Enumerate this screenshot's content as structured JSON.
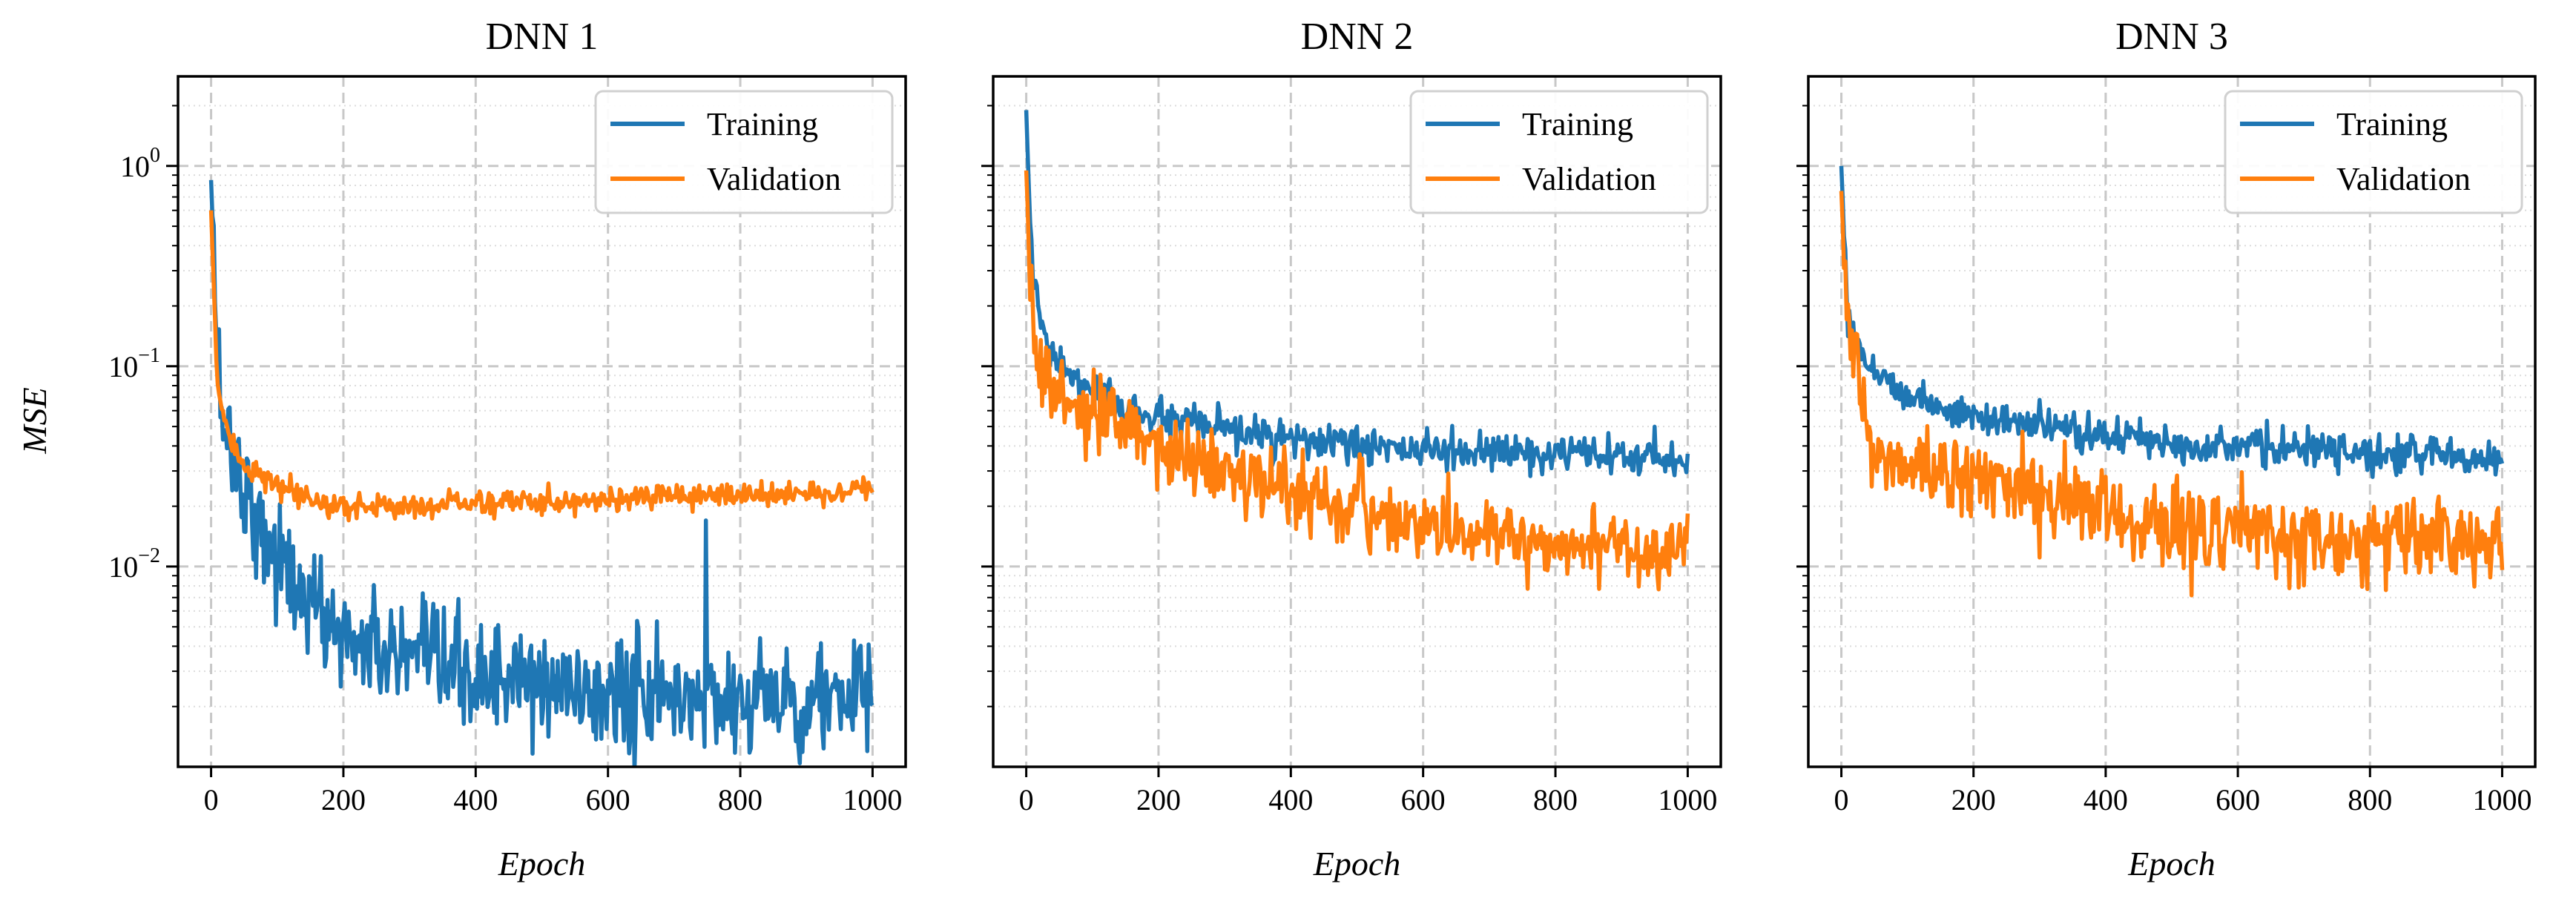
{
  "figure": {
    "shared_ylabel": "MSE",
    "shared_xlabel": "Epoch"
  },
  "chart_data": [
    {
      "type": "line",
      "title": "DNN 1",
      "xlabel": "Epoch",
      "ylabel": "MSE",
      "yscale": "log",
      "xlim": [
        -50,
        1050
      ],
      "ylim": [
        0.001,
        2.8
      ],
      "xticks": [
        0,
        200,
        400,
        600,
        800,
        1000
      ],
      "yticks": [
        {
          "value": 1,
          "base": "10",
          "exp": "0"
        },
        {
          "value": 0.1,
          "base": "10",
          "exp": "−1"
        },
        {
          "value": 0.01,
          "base": "10",
          "exp": "−2"
        }
      ],
      "grid": true,
      "legend_position": "top-right",
      "series": [
        {
          "name": "Training",
          "color": "#1f77b4",
          "x": [
            0,
            5,
            10,
            20,
            30,
            50,
            75,
            100,
            150,
            200,
            300,
            400,
            500,
            600,
            700,
            800,
            900,
            1000
          ],
          "values": [
            0.85,
            0.3,
            0.1,
            0.055,
            0.04,
            0.025,
            0.016,
            0.011,
            0.0065,
            0.0045,
            0.0033,
            0.0028,
            0.0025,
            0.0023,
            0.0022,
            0.0022,
            0.0022,
            0.0022
          ]
        },
        {
          "name": "Validation",
          "color": "#ff7f0e",
          "x": [
            0,
            5,
            10,
            20,
            30,
            50,
            75,
            100,
            150,
            200,
            300,
            400,
            500,
            600,
            700,
            800,
            900,
            1000
          ],
          "values": [
            0.6,
            0.2,
            0.08,
            0.05,
            0.042,
            0.033,
            0.028,
            0.025,
            0.021,
            0.02,
            0.02,
            0.021,
            0.021,
            0.022,
            0.022,
            0.023,
            0.023,
            0.024
          ]
        }
      ]
    },
    {
      "type": "line",
      "title": "DNN 2",
      "xlabel": "Epoch",
      "ylabel": "",
      "yscale": "log",
      "xlim": [
        -50,
        1050
      ],
      "ylim": [
        0.001,
        2.8
      ],
      "xticks": [
        0,
        200,
        400,
        600,
        800,
        1000
      ],
      "yticks": [
        {
          "value": 1
        },
        {
          "value": 0.1
        },
        {
          "value": 0.01
        }
      ],
      "grid": true,
      "legend_position": "top-right",
      "series": [
        {
          "name": "Training",
          "color": "#1f77b4",
          "x": [
            0,
            5,
            10,
            20,
            30,
            50,
            75,
            100,
            150,
            200,
            300,
            400,
            500,
            600,
            700,
            800,
            900,
            1000
          ],
          "values": [
            1.9,
            0.6,
            0.3,
            0.17,
            0.13,
            0.1,
            0.085,
            0.075,
            0.062,
            0.055,
            0.048,
            0.043,
            0.04,
            0.038,
            0.037,
            0.036,
            0.035,
            0.034
          ]
        },
        {
          "name": "Validation",
          "color": "#ff7f0e",
          "x": [
            0,
            5,
            10,
            20,
            30,
            50,
            75,
            100,
            150,
            200,
            300,
            400,
            500,
            600,
            700,
            800,
            900,
            1000
          ],
          "values": [
            0.95,
            0.35,
            0.16,
            0.1,
            0.085,
            0.07,
            0.062,
            0.056,
            0.047,
            0.04,
            0.03,
            0.024,
            0.019,
            0.016,
            0.014,
            0.013,
            0.013,
            0.012
          ]
        }
      ]
    },
    {
      "type": "line",
      "title": "DNN 3",
      "xlabel": "Epoch",
      "ylabel": "",
      "yscale": "log",
      "xlim": [
        -50,
        1050
      ],
      "ylim": [
        0.001,
        2.8
      ],
      "xticks": [
        0,
        200,
        400,
        600,
        800,
        1000
      ],
      "yticks": [
        {
          "value": 1
        },
        {
          "value": 0.1
        },
        {
          "value": 0.01
        }
      ],
      "grid": true,
      "legend_position": "top-right",
      "series": [
        {
          "name": "Training",
          "color": "#1f77b4",
          "x": [
            0,
            5,
            10,
            20,
            30,
            50,
            75,
            100,
            150,
            200,
            300,
            400,
            500,
            600,
            700,
            800,
            900,
            1000
          ],
          "values": [
            1.0,
            0.4,
            0.2,
            0.14,
            0.12,
            0.095,
            0.082,
            0.073,
            0.062,
            0.056,
            0.05,
            0.045,
            0.042,
            0.04,
            0.038,
            0.037,
            0.036,
            0.035
          ]
        },
        {
          "name": "Validation",
          "color": "#ff7f0e",
          "x": [
            0,
            5,
            10,
            20,
            30,
            40,
            50,
            75,
            100,
            150,
            200,
            300,
            400,
            500,
            600,
            700,
            800,
            900,
            1000
          ],
          "values": [
            0.75,
            0.3,
            0.15,
            0.1,
            0.07,
            0.04,
            0.036,
            0.034,
            0.032,
            0.03,
            0.028,
            0.023,
            0.019,
            0.016,
            0.015,
            0.014,
            0.014,
            0.013,
            0.013
          ]
        }
      ]
    }
  ]
}
